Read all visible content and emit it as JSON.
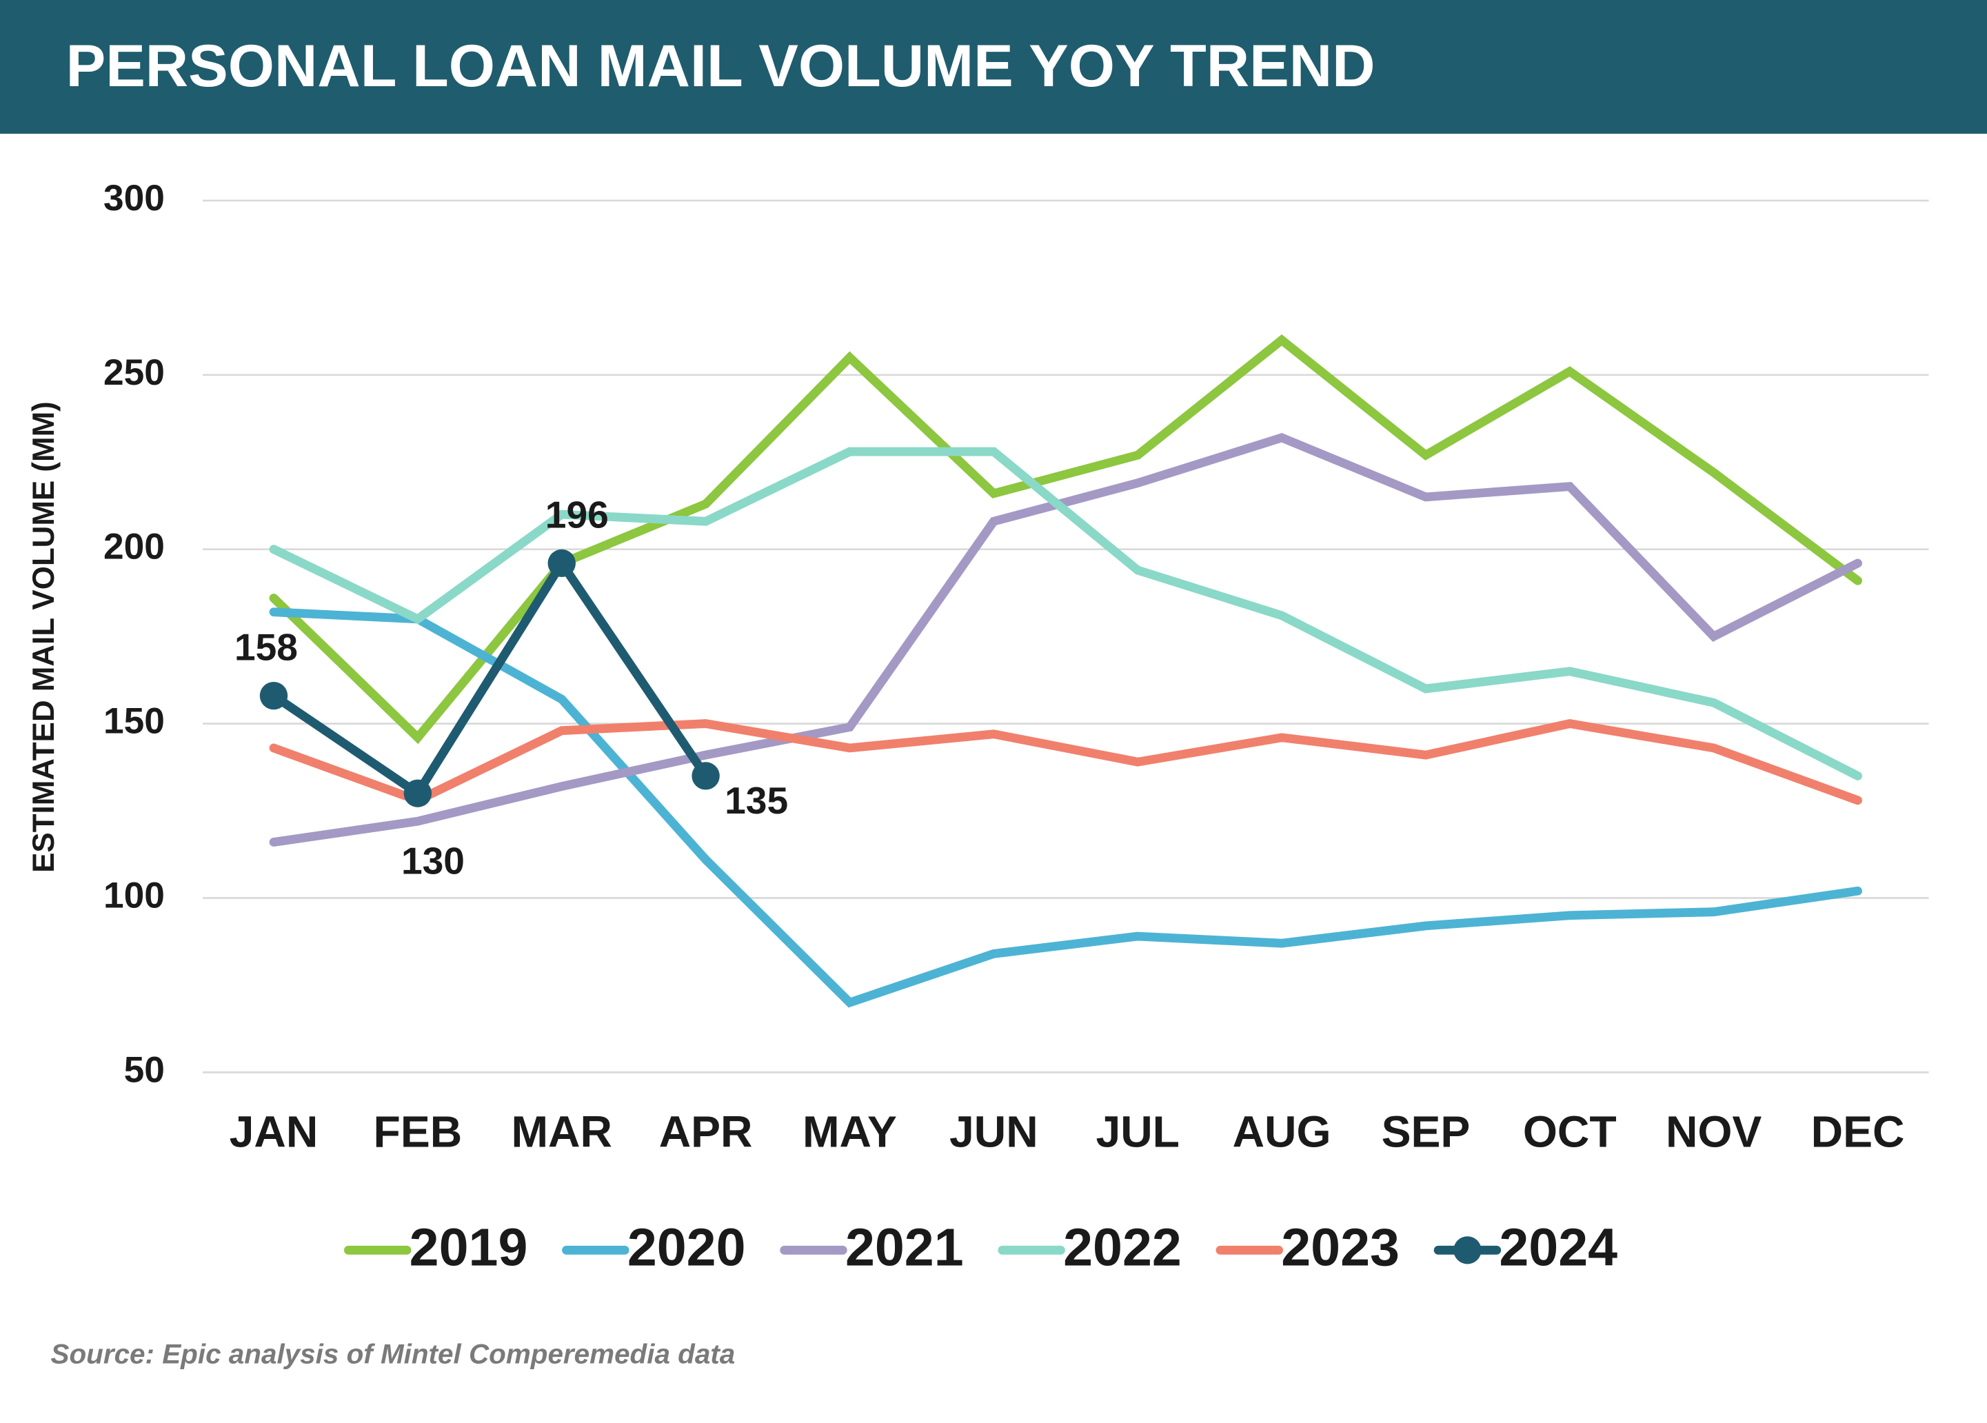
{
  "chart_data": {
    "type": "line",
    "title": "PERSONAL LOAN MAIL VOLUME YOY TREND",
    "y_label": "ESTIMATED MAIL VOLUME (MM)",
    "source": "Source: Epic analysis of Mintel Comperemedia data",
    "categories": [
      "JAN",
      "FEB",
      "MAR",
      "APR",
      "MAY",
      "JUN",
      "JUL",
      "AUG",
      "SEP",
      "OCT",
      "NOV",
      "DEC"
    ],
    "ylim": [
      50,
      300
    ],
    "yticks": [
      50,
      100,
      150,
      200,
      250,
      300
    ],
    "grid": true,
    "legend": "bottom",
    "series": [
      {
        "name": "2019",
        "color": "#8dc63f",
        "values": [
          186,
          146,
          196,
          213,
          255,
          216,
          227,
          260,
          227,
          251,
          222,
          191
        ]
      },
      {
        "name": "2020",
        "color": "#4db3d4",
        "values": [
          182,
          180,
          157,
          111,
          70,
          84,
          89,
          87,
          92,
          95,
          96,
          102
        ]
      },
      {
        "name": "2021",
        "color": "#a499c4",
        "values": [
          116,
          122,
          132,
          141,
          149,
          208,
          219,
          232,
          215,
          218,
          175,
          196
        ]
      },
      {
        "name": "2022",
        "color": "#8ad8c8",
        "values": [
          200,
          180,
          210,
          208,
          228,
          228,
          194,
          181,
          160,
          165,
          156,
          135
        ]
      },
      {
        "name": "2023",
        "color": "#f0806c",
        "values": [
          143,
          128,
          148,
          150,
          143,
          147,
          139,
          146,
          141,
          150,
          143,
          128
        ]
      },
      {
        "name": "2024",
        "color": "#1f5b70",
        "markers": true,
        "data_labels": true,
        "values": [
          158,
          130,
          196,
          135,
          null,
          null,
          null,
          null,
          null,
          null,
          null,
          null
        ]
      }
    ]
  }
}
